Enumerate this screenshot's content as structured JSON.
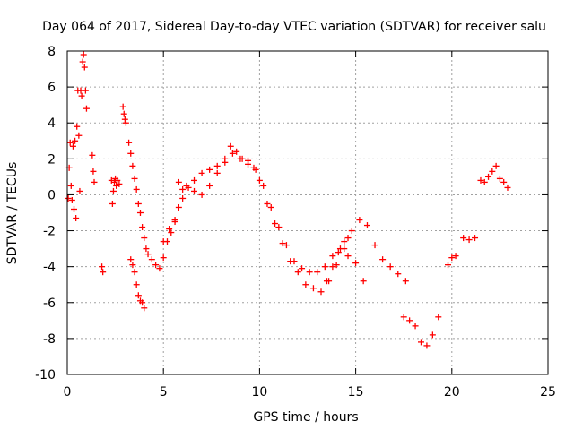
{
  "chart_data": {
    "type": "scatter",
    "title": "Day 064 of 2017, Sidereal Day-to-day VTEC variation (SDTVAR) for receiver salu",
    "xlabel": "GPS time / hours",
    "ylabel": "SDTVAR / TECUs",
    "xlim": [
      0,
      25
    ],
    "ylim": [
      -10,
      8
    ],
    "xticks": [
      0,
      5,
      10,
      15,
      20,
      25
    ],
    "yticks": [
      -10,
      -8,
      -6,
      -4,
      -2,
      0,
      2,
      4,
      6,
      8
    ],
    "grid": true,
    "marker": "+",
    "series": [
      {
        "name": "SDTVAR",
        "color": "#ff0000",
        "x": [
          0.05,
          0.1,
          0.15,
          0.2,
          0.25,
          0.3,
          0.35,
          0.4,
          0.45,
          0.5,
          0.55,
          0.6,
          0.65,
          0.7,
          0.75,
          0.8,
          0.85,
          0.9,
          0.95,
          1.0,
          1.3,
          1.35,
          1.4,
          1.8,
          1.85,
          2.3,
          2.35,
          2.4,
          2.45,
          2.5,
          2.55,
          2.6,
          2.7,
          2.9,
          2.95,
          3.0,
          3.05,
          3.2,
          3.3,
          3.4,
          3.5,
          3.6,
          3.7,
          3.8,
          3.9,
          4.0,
          4.1,
          3.3,
          3.4,
          3.5,
          3.6,
          3.7,
          3.8,
          3.9,
          4.0,
          4.2,
          4.4,
          4.6,
          4.8,
          5.0,
          5.2,
          5.4,
          5.6,
          5.8,
          6.0,
          5.0,
          5.3,
          5.6,
          6.0,
          6.3,
          6.6,
          7.0,
          7.4,
          7.8,
          8.2,
          8.5,
          8.8,
          9.1,
          9.4,
          9.7,
          10.0,
          10.4,
          10.8,
          11.2,
          11.6,
          12.0,
          12.4,
          12.8,
          13.2,
          13.6,
          14.0,
          14.4,
          14.8,
          15.2,
          15.6,
          16.0,
          16.4,
          16.8,
          17.2,
          17.6,
          5.8,
          6.2,
          6.6,
          7.0,
          7.4,
          7.8,
          8.2,
          8.6,
          9.0,
          9.4,
          9.8,
          10.2,
          10.6,
          11.0,
          11.4,
          11.8,
          12.2,
          12.6,
          13.0,
          13.4,
          13.8,
          14.2,
          14.6,
          15.0,
          15.4,
          13.5,
          13.8,
          14.1,
          14.4,
          14.6,
          17.5,
          17.8,
          18.1,
          18.4,
          18.7,
          19.0,
          19.3,
          19.8,
          20.0,
          20.2,
          20.6,
          20.9,
          21.2,
          21.5,
          21.7,
          21.9,
          22.1,
          22.3,
          22.5,
          22.7,
          22.9
        ],
        "y": [
          -0.2,
          1.5,
          2.9,
          0.5,
          -0.3,
          2.7,
          -0.8,
          3.0,
          -1.3,
          3.8,
          5.8,
          3.3,
          0.2,
          5.8,
          5.5,
          7.4,
          7.8,
          7.1,
          5.8,
          4.8,
          2.2,
          1.3,
          0.7,
          -4.0,
          -4.3,
          0.8,
          -0.5,
          0.2,
          0.7,
          0.9,
          0.5,
          0.8,
          0.6,
          4.9,
          4.5,
          4.2,
          4.0,
          2.9,
          2.3,
          1.6,
          0.9,
          0.3,
          -0.5,
          -1.0,
          -1.8,
          -2.4,
          -3.0,
          -3.6,
          -3.9,
          -4.3,
          -5.0,
          -5.6,
          -5.9,
          -6.0,
          -6.3,
          -3.3,
          -3.6,
          -3.9,
          -4.1,
          -3.5,
          -2.6,
          -2.1,
          -1.5,
          -0.7,
          0.3,
          -2.6,
          -1.9,
          -1.4,
          -0.2,
          0.4,
          0.8,
          1.2,
          1.4,
          1.6,
          2.0,
          2.7,
          2.4,
          2.0,
          1.9,
          1.5,
          0.8,
          -0.5,
          -1.6,
          -2.7,
          -3.7,
          -4.3,
          -5.0,
          -5.2,
          -5.4,
          -4.8,
          -3.9,
          -3.0,
          -2.0,
          -1.4,
          -1.7,
          -2.8,
          -3.6,
          -4.0,
          -4.4,
          -4.8,
          0.7,
          0.5,
          0.2,
          0.0,
          0.5,
          1.2,
          1.8,
          2.3,
          2.0,
          1.7,
          1.4,
          0.5,
          -0.7,
          -1.8,
          -2.8,
          -3.7,
          -4.1,
          -4.3,
          -4.3,
          -4.0,
          -3.4,
          -3.0,
          -3.4,
          -3.8,
          -4.8,
          -4.8,
          -4.0,
          -3.2,
          -2.6,
          -2.4,
          -6.8,
          -7.0,
          -7.3,
          -8.2,
          -8.4,
          -7.8,
          -6.8,
          -3.9,
          -3.5,
          -3.4,
          -2.4,
          -2.5,
          -2.4,
          0.8,
          0.7,
          1.0,
          1.3,
          1.6,
          0.9,
          0.7,
          0.4
        ]
      }
    ]
  }
}
